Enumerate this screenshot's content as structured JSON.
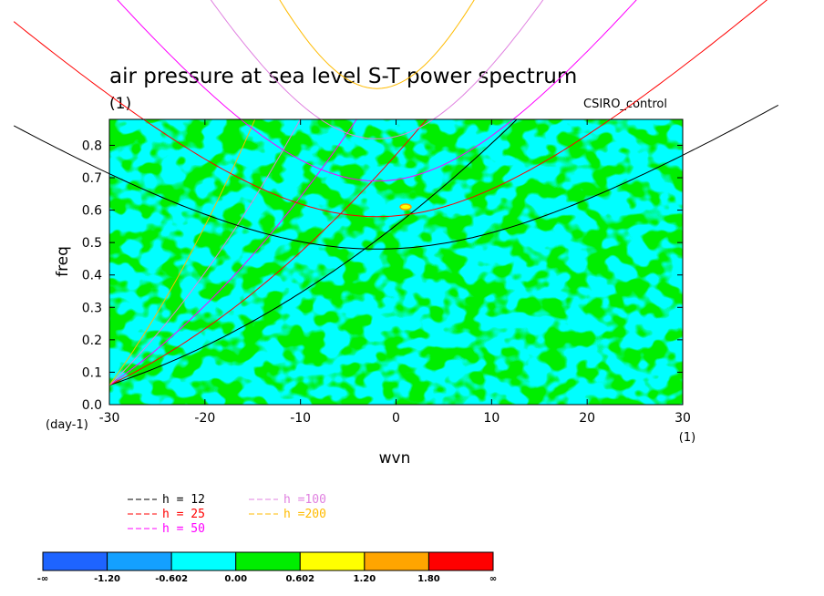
{
  "chart_data": {
    "type": "heatmap",
    "title": "air pressure at sea level S-T power spectrum",
    "subtitle": "(1)",
    "dataset_label": "CSIRO_control",
    "xlabel": "wvn",
    "xunit": "(1)",
    "ylabel": "freq",
    "yunit": "(day-1)",
    "xlim": [
      -30,
      30
    ],
    "ylim": [
      0,
      0.88
    ],
    "xticks": [
      -30,
      -20,
      -10,
      0,
      10,
      20,
      30
    ],
    "xtick_labels": [
      "-30",
      "-20",
      "-10",
      "0",
      "10",
      "20",
      "30"
    ],
    "yticks": [
      0,
      0.1,
      0.2,
      0.3,
      0.4,
      0.5,
      0.6,
      0.7,
      0.8
    ],
    "ytick_labels": [
      "0.0",
      "0.1",
      "0.2",
      "0.3",
      "0.4",
      "0.5",
      "0.6",
      "0.7",
      "0.8"
    ],
    "field_note": "noisy log10 power, mostly between -0.602 and 0.602 (cyan/green), single small maximum near wvn 1, freq 0.61",
    "maximum": {
      "wvn": 1,
      "freq": 0.61
    },
    "colorbar": {
      "labels": [
        "-∞",
        "-1.20",
        "-0.602",
        "0.00",
        "0.602",
        "1.20",
        "1.80",
        "∞"
      ],
      "colors": [
        "#1e64ff",
        "#14a0ff",
        "#00ffff",
        "#00ee00",
        "#ffff00",
        "#ffa500",
        "#ff0000"
      ]
    },
    "dispersion_curves": [
      {
        "h": 12,
        "label": "h = 12",
        "color": "#000000",
        "equatorial_freq": 0.48,
        "kelvin_slope": 0.0179,
        "kelvin_at_minus30": 0.06
      },
      {
        "h": 25,
        "label": "h = 25",
        "color": "#ff0000",
        "equatorial_freq": 0.58,
        "kelvin_slope": 0.0258,
        "kelvin_at_minus30": 0.06
      },
      {
        "h": 50,
        "label": "h = 50",
        "color": "#ff00ff",
        "equatorial_freq": 0.69,
        "kelvin_slope": 0.0365,
        "kelvin_at_minus30": 0.06
      },
      {
        "h": 100,
        "label": "h =100",
        "color": "#e080e0",
        "equatorial_freq": 0.82,
        "kelvin_slope": 0.0516,
        "kelvin_at_minus30": 0.06
      },
      {
        "h": 200,
        "label": "h =200",
        "color": "#ffbb00",
        "equatorial_freq": 0.975,
        "kelvin_slope": 0.073,
        "kelvin_at_minus30": 0.06
      }
    ]
  }
}
